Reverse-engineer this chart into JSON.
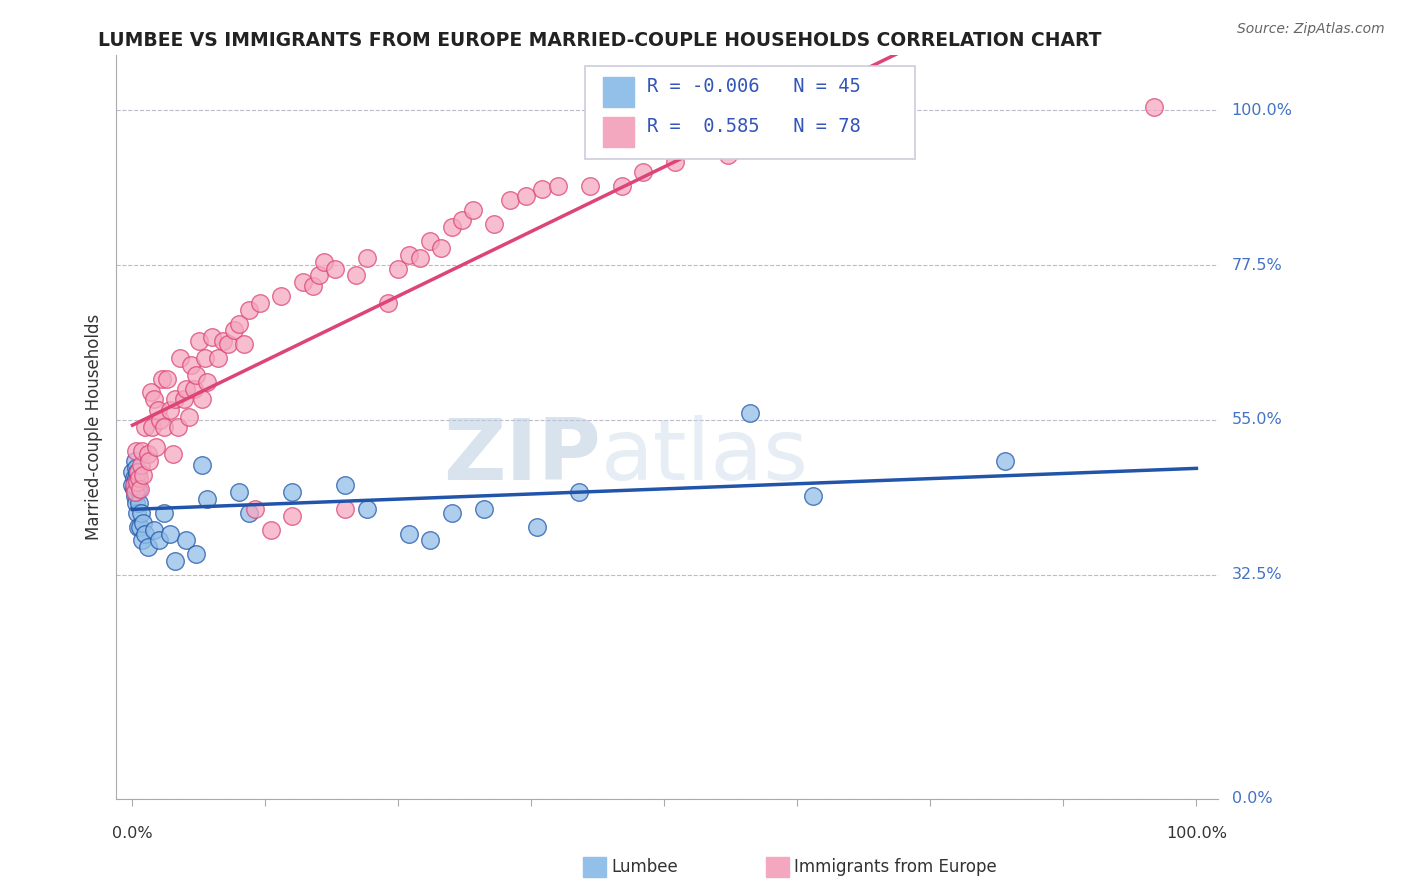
{
  "title": "LUMBEE VS IMMIGRANTS FROM EUROPE MARRIED-COUPLE HOUSEHOLDS CORRELATION CHART",
  "source_text": "Source: ZipAtlas.com",
  "ylabel": "Married-couple Households",
  "xlabel_lumbee": "Lumbee",
  "xlabel_europe": "Immigrants from Europe",
  "lumbee_R": -0.006,
  "lumbee_N": 45,
  "europe_R": 0.585,
  "europe_N": 78,
  "lumbee_color": "#92C0E8",
  "europe_color": "#F4A8C0",
  "lumbee_line_color": "#2255AA",
  "europe_line_color": "#DD4477",
  "watermark_zip": "ZIP",
  "watermark_atlas": "atlas",
  "lumbee_points_x": [
    0.0,
    0.0,
    0.001,
    0.001,
    0.002,
    0.002,
    0.002,
    0.003,
    0.003,
    0.003,
    0.003,
    0.004,
    0.004,
    0.005,
    0.005,
    0.006,
    0.007,
    0.008,
    0.009,
    0.01,
    0.012,
    0.015,
    0.02,
    0.025,
    0.03,
    0.035,
    0.04,
    0.05,
    0.06,
    0.065,
    0.07,
    0.1,
    0.11,
    0.15,
    0.2,
    0.22,
    0.26,
    0.28,
    0.3,
    0.33,
    0.38,
    0.42,
    0.58,
    0.64,
    0.82
  ],
  "lumbee_points_y": [
    0.455,
    0.475,
    0.45,
    0.465,
    0.44,
    0.46,
    0.49,
    0.43,
    0.445,
    0.465,
    0.48,
    0.415,
    0.475,
    0.395,
    0.45,
    0.43,
    0.395,
    0.415,
    0.375,
    0.4,
    0.385,
    0.365,
    0.39,
    0.375,
    0.415,
    0.385,
    0.345,
    0.375,
    0.355,
    0.485,
    0.435,
    0.445,
    0.415,
    0.445,
    0.455,
    0.42,
    0.385,
    0.375,
    0.415,
    0.42,
    0.395,
    0.445,
    0.56,
    0.44,
    0.49
  ],
  "europe_points_x": [
    0.001,
    0.002,
    0.003,
    0.004,
    0.005,
    0.006,
    0.007,
    0.008,
    0.009,
    0.01,
    0.012,
    0.015,
    0.016,
    0.017,
    0.018,
    0.02,
    0.022,
    0.024,
    0.026,
    0.028,
    0.03,
    0.032,
    0.035,
    0.038,
    0.04,
    0.043,
    0.045,
    0.048,
    0.05,
    0.053,
    0.055,
    0.058,
    0.06,
    0.063,
    0.065,
    0.068,
    0.07,
    0.075,
    0.08,
    0.085,
    0.09,
    0.095,
    0.1,
    0.105,
    0.11,
    0.115,
    0.12,
    0.13,
    0.14,
    0.15,
    0.16,
    0.17,
    0.175,
    0.18,
    0.19,
    0.2,
    0.21,
    0.22,
    0.24,
    0.25,
    0.26,
    0.27,
    0.28,
    0.29,
    0.3,
    0.31,
    0.32,
    0.34,
    0.355,
    0.37,
    0.385,
    0.4,
    0.43,
    0.46,
    0.48,
    0.51,
    0.56,
    0.96
  ],
  "europe_points_y": [
    0.455,
    0.445,
    0.505,
    0.46,
    0.475,
    0.465,
    0.45,
    0.485,
    0.505,
    0.47,
    0.54,
    0.5,
    0.49,
    0.59,
    0.54,
    0.58,
    0.51,
    0.565,
    0.55,
    0.61,
    0.54,
    0.61,
    0.565,
    0.5,
    0.58,
    0.54,
    0.64,
    0.58,
    0.595,
    0.555,
    0.63,
    0.595,
    0.615,
    0.665,
    0.58,
    0.64,
    0.605,
    0.67,
    0.64,
    0.665,
    0.66,
    0.68,
    0.69,
    0.66,
    0.71,
    0.42,
    0.72,
    0.39,
    0.73,
    0.41,
    0.75,
    0.745,
    0.76,
    0.78,
    0.77,
    0.42,
    0.76,
    0.785,
    0.72,
    0.77,
    0.79,
    0.785,
    0.81,
    0.8,
    0.83,
    0.84,
    0.855,
    0.835,
    0.87,
    0.875,
    0.885,
    0.89,
    0.89,
    0.89,
    0.91,
    0.925,
    0.935,
    1.005
  ],
  "ytick_values": [
    0.0,
    0.325,
    0.55,
    0.775,
    1.0
  ],
  "ytick_labels": [
    "0.0%",
    "32.5%",
    "55.0%",
    "77.5%",
    "100.0%"
  ]
}
